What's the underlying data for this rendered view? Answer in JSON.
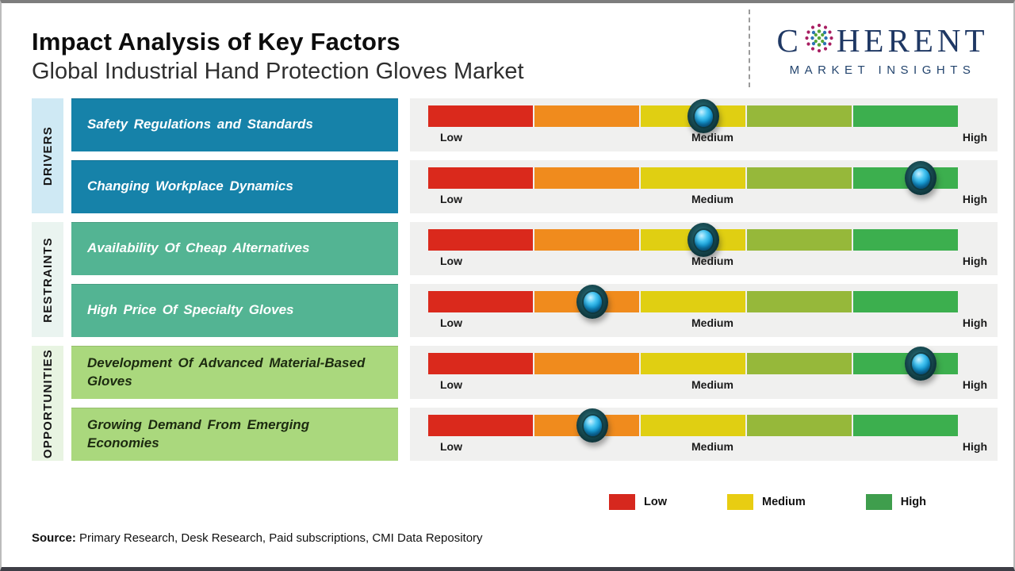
{
  "header": {
    "title": "Impact Analysis of Key Factors",
    "subtitle": "Global Industrial Hand Protection Gloves Market",
    "logo": {
      "word_start": "C",
      "word_end": "HERENT",
      "tagline": "MARKET INSIGHTS",
      "brand_color": "#1f3864"
    }
  },
  "chart_data": {
    "type": "heatmap",
    "description": "Impact rating matrix: each factor has a marker on a Low-to-High gradient scale",
    "scale_labels": [
      "Low",
      "Medium",
      "High"
    ],
    "segment_colors": [
      "#da291c",
      "#f08b1d",
      "#e0cf12",
      "#96b83a",
      "#3caf4e"
    ],
    "groups": [
      {
        "category": "DRIVERS",
        "strip_color": "#cfe9f4",
        "box_color": "#1682a9",
        "text_color": "#ffffff",
        "factors": [
          {
            "label": "Safety Regulations and Standards",
            "position_pct": 52
          },
          {
            "label": "Changing Workplace Dynamics",
            "position_pct": 93
          }
        ]
      },
      {
        "category": "RESTRAINTS",
        "strip_color": "#eaf4f0",
        "box_color": "#53b493",
        "text_color": "#ffffff",
        "factors": [
          {
            "label": "Availability Of Cheap Alternatives",
            "position_pct": 52
          },
          {
            "label": "High Price Of Specialty Gloves",
            "position_pct": 31
          }
        ]
      },
      {
        "category": "OPPORTUNITIES",
        "strip_color": "#e8f4e2",
        "box_color": "#aad87d",
        "text_color": "#1c2a10",
        "factors": [
          {
            "label": "Development Of Advanced Material-Based Gloves",
            "position_pct": 93
          },
          {
            "label": "Growing Demand From Emerging Economies",
            "position_pct": 31
          }
        ]
      }
    ],
    "legend": [
      {
        "label": "Low",
        "color": "#d6281e"
      },
      {
        "label": "Medium",
        "color": "#e8cd12"
      },
      {
        "label": "High",
        "color": "#3f9e4d"
      }
    ]
  },
  "footer": {
    "source_label": "Source:",
    "source_text": " Primary Research, Desk Research, Paid subscriptions, CMI Data Repository"
  }
}
